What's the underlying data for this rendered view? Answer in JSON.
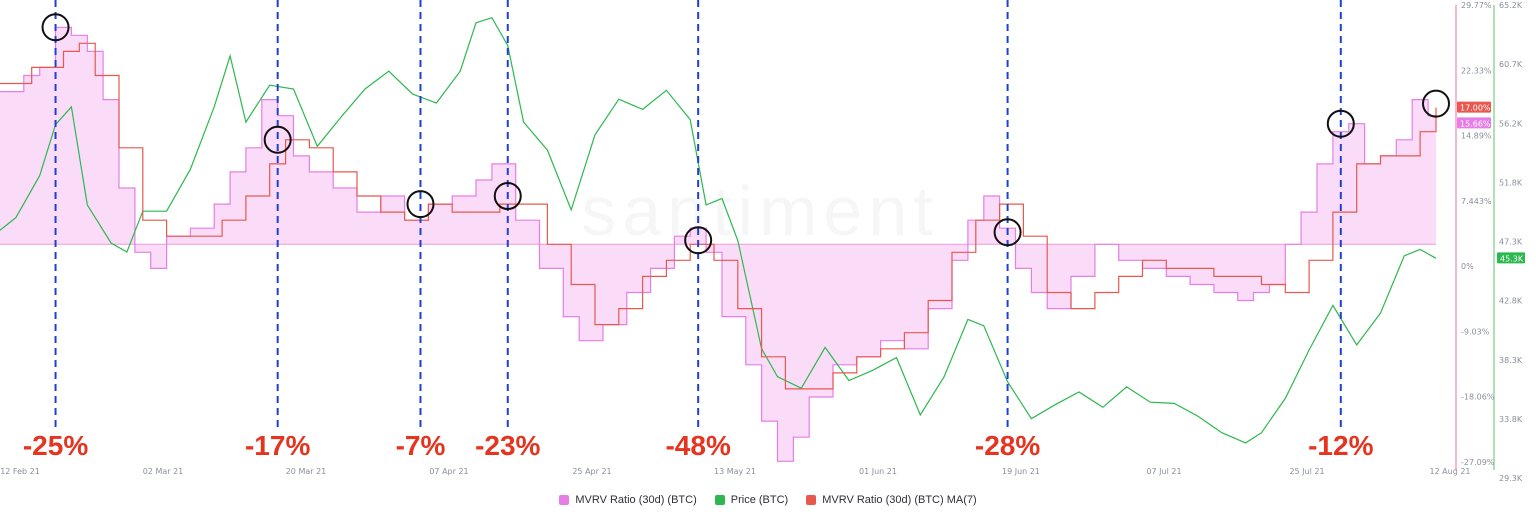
{
  "watermark": "santiment",
  "chart_data": {
    "type": "line",
    "x_ticks": [
      "12 Feb 21",
      "02 Mar 21",
      "20 Mar 21",
      "07 Apr 21",
      "25 Apr 21",
      "13 May 21",
      "01 Jun 21",
      "19 Jun 21",
      "07 Jul 21",
      "25 Jul 21",
      "12 Aug 21"
    ],
    "x_range": [
      "2021-02-12",
      "2021-08-12"
    ],
    "y_left": {
      "label": "",
      "ticks": []
    },
    "y_mvrv": {
      "unit": "%",
      "ticks": [
        "29.77%",
        "22.33%",
        "14.89%",
        "7.443%",
        "0%",
        "-9.03%",
        "-18.06%",
        "-27.09%"
      ],
      "range": [
        -27.09,
        29.77
      ]
    },
    "y_price": {
      "unit": "USD",
      "ticks": [
        "65.2K",
        "60.7K",
        "56.2K",
        "51.8K",
        "47.3K",
        "42.8K",
        "38.3K",
        "33.8K",
        "29.3K"
      ],
      "range": [
        29300,
        65200
      ]
    },
    "series": [
      {
        "name": "MVRV Ratio (30d) (BTC)",
        "color": "#e67ee6",
        "fill": "#fbdcf8",
        "axis": "mvrv",
        "last_label": "15.66%",
        "x": [
          "2021-02-12",
          "2021-02-15",
          "2021-02-17",
          "2021-02-19",
          "2021-02-21",
          "2021-02-23",
          "2021-02-25",
          "2021-02-27",
          "2021-03-01",
          "2021-03-03",
          "2021-03-05",
          "2021-03-08",
          "2021-03-11",
          "2021-03-13",
          "2021-03-15",
          "2021-03-17",
          "2021-03-19",
          "2021-03-21",
          "2021-03-23",
          "2021-03-26",
          "2021-03-29",
          "2021-04-01",
          "2021-04-04",
          "2021-04-07",
          "2021-04-10",
          "2021-04-13",
          "2021-04-15",
          "2021-04-18",
          "2021-04-21",
          "2021-04-24",
          "2021-04-26",
          "2021-04-29",
          "2021-05-02",
          "2021-05-05",
          "2021-05-08",
          "2021-05-10",
          "2021-05-12",
          "2021-05-14",
          "2021-05-17",
          "2021-05-19",
          "2021-05-21",
          "2021-05-23",
          "2021-05-25",
          "2021-05-28",
          "2021-05-31",
          "2021-06-03",
          "2021-06-06",
          "2021-06-09",
          "2021-06-12",
          "2021-06-14",
          "2021-06-16",
          "2021-06-18",
          "2021-06-20",
          "2021-06-22",
          "2021-06-24",
          "2021-06-27",
          "2021-06-30",
          "2021-07-03",
          "2021-07-06",
          "2021-07-09",
          "2021-07-12",
          "2021-07-15",
          "2021-07-18",
          "2021-07-20",
          "2021-07-22",
          "2021-07-24",
          "2021-07-26",
          "2021-07-28",
          "2021-07-30",
          "2021-08-01",
          "2021-08-03",
          "2021-08-05",
          "2021-08-07",
          "2021-08-09",
          "2021-08-11",
          "2021-08-12"
        ],
        "values": [
          19,
          21,
          22,
          27,
          26,
          24,
          18,
          7,
          -1,
          -3,
          1,
          2,
          5,
          9,
          12,
          18,
          16,
          11,
          9,
          7,
          4,
          6,
          3,
          5,
          6,
          8,
          10,
          3,
          -3,
          -9,
          -12,
          -10,
          -6,
          -3,
          1,
          2,
          -1,
          -9,
          -15,
          -22,
          -27,
          -24,
          -19,
          -15,
          -14,
          -12,
          -13,
          -8,
          -2,
          3,
          6,
          2,
          -3,
          -6,
          -8,
          -4,
          0,
          -2,
          -3,
          -4,
          -5,
          -6,
          -7,
          -6,
          -5,
          0,
          4,
          10,
          14,
          15,
          10,
          11,
          13,
          18,
          16,
          15.66
        ]
      },
      {
        "name": "Price (BTC)",
        "color": "#2cb84f",
        "axis": "price",
        "last_label": "45.3K",
        "x": [
          "2021-02-12",
          "2021-02-14",
          "2021-02-17",
          "2021-02-19",
          "2021-02-21",
          "2021-02-23",
          "2021-02-26",
          "2021-02-28",
          "2021-03-02",
          "2021-03-05",
          "2021-03-08",
          "2021-03-11",
          "2021-03-13",
          "2021-03-15",
          "2021-03-18",
          "2021-03-21",
          "2021-03-24",
          "2021-03-27",
          "2021-03-30",
          "2021-04-02",
          "2021-04-05",
          "2021-04-08",
          "2021-04-11",
          "2021-04-13",
          "2021-04-15",
          "2021-04-17",
          "2021-04-19",
          "2021-04-22",
          "2021-04-25",
          "2021-04-28",
          "2021-05-01",
          "2021-05-04",
          "2021-05-07",
          "2021-05-10",
          "2021-05-12",
          "2021-05-14",
          "2021-05-16",
          "2021-05-19",
          "2021-05-21",
          "2021-05-24",
          "2021-05-27",
          "2021-05-30",
          "2021-06-02",
          "2021-06-05",
          "2021-06-08",
          "2021-06-11",
          "2021-06-14",
          "2021-06-16",
          "2021-06-19",
          "2021-06-22",
          "2021-06-25",
          "2021-06-28",
          "2021-07-01",
          "2021-07-04",
          "2021-07-07",
          "2021-07-10",
          "2021-07-13",
          "2021-07-16",
          "2021-07-19",
          "2021-07-21",
          "2021-07-24",
          "2021-07-27",
          "2021-07-30",
          "2021-08-02",
          "2021-08-05",
          "2021-08-08",
          "2021-08-10",
          "2021-08-12"
        ],
        "values": [
          47500,
          48500,
          51800,
          55800,
          57200,
          49500,
          46500,
          45800,
          49000,
          49000,
          52300,
          57200,
          61200,
          56000,
          58900,
          58600,
          54100,
          56400,
          58600,
          60000,
          58200,
          57500,
          60000,
          63800,
          64200,
          62000,
          56000,
          53800,
          49100,
          55000,
          57800,
          57000,
          58500,
          56200,
          49500,
          50000,
          46700,
          38200,
          36000,
          35100,
          38300,
          35700,
          36500,
          37500,
          33000,
          36000,
          40500,
          40000,
          35600,
          32700,
          33800,
          34800,
          33600,
          35200,
          34000,
          33900,
          32900,
          31600,
          30800,
          31600,
          34300,
          38100,
          41600,
          38500,
          41000,
          45500,
          46000,
          45300
        ]
      },
      {
        "name": "MVRV Ratio (30d) (BTC) MA(7)",
        "color": "#e8584e",
        "axis": "mvrv",
        "last_label": "17.00%",
        "x": [
          "2021-02-12",
          "2021-02-16",
          "2021-02-20",
          "2021-02-22",
          "2021-02-24",
          "2021-02-27",
          "2021-03-02",
          "2021-03-05",
          "2021-03-09",
          "2021-03-12",
          "2021-03-15",
          "2021-03-18",
          "2021-03-20",
          "2021-03-23",
          "2021-03-26",
          "2021-03-29",
          "2021-04-01",
          "2021-04-04",
          "2021-04-07",
          "2021-04-10",
          "2021-04-13",
          "2021-04-16",
          "2021-04-19",
          "2021-04-22",
          "2021-04-25",
          "2021-04-28",
          "2021-05-01",
          "2021-05-04",
          "2021-05-07",
          "2021-05-10",
          "2021-05-13",
          "2021-05-16",
          "2021-05-19",
          "2021-05-22",
          "2021-05-25",
          "2021-05-28",
          "2021-05-31",
          "2021-06-03",
          "2021-06-06",
          "2021-06-09",
          "2021-06-12",
          "2021-06-15",
          "2021-06-18",
          "2021-06-21",
          "2021-06-24",
          "2021-06-27",
          "2021-06-30",
          "2021-07-03",
          "2021-07-06",
          "2021-07-09",
          "2021-07-12",
          "2021-07-15",
          "2021-07-18",
          "2021-07-21",
          "2021-07-24",
          "2021-07-27",
          "2021-07-30",
          "2021-08-02",
          "2021-08-05",
          "2021-08-08",
          "2021-08-10",
          "2021-08-12"
        ],
        "values": [
          20,
          22,
          24,
          25,
          21,
          12,
          3,
          1,
          1,
          3,
          6,
          10,
          13,
          12,
          9,
          6,
          4,
          3,
          5,
          4,
          4,
          5,
          5,
          0,
          -5,
          -10,
          -8,
          -4,
          -2,
          0,
          -2,
          -8,
          -14,
          -18,
          -18,
          -16,
          -14,
          -13,
          -11,
          -7,
          -1,
          3,
          5,
          1,
          -6,
          -8,
          -6,
          -4,
          -2,
          -3,
          -3,
          -4,
          -4,
          -5,
          -6,
          -2,
          4,
          10,
          11,
          11,
          14,
          17
        ]
      }
    ],
    "annotations": [
      {
        "x": "2021-02-19",
        "text": "-25%",
        "ring_y": 27.0
      },
      {
        "x": "2021-03-19",
        "text": "-17%",
        "ring_y": 13.0
      },
      {
        "x": "2021-04-06",
        "text": "-7%",
        "ring_y": 5.0
      },
      {
        "x": "2021-04-17",
        "text": "-23%",
        "ring_y": 6.0
      },
      {
        "x": "2021-05-11",
        "text": "-48%",
        "ring_y": 0.5
      },
      {
        "x": "2021-06-19",
        "text": "-28%",
        "ring_y": 1.5
      },
      {
        "x": "2021-07-31",
        "text": "-12%",
        "ring_y": 15.0
      },
      {
        "x": "2021-08-12",
        "text": "",
        "ring_y": 17.5
      }
    ],
    "grid": false,
    "legend": "bottom-center"
  }
}
